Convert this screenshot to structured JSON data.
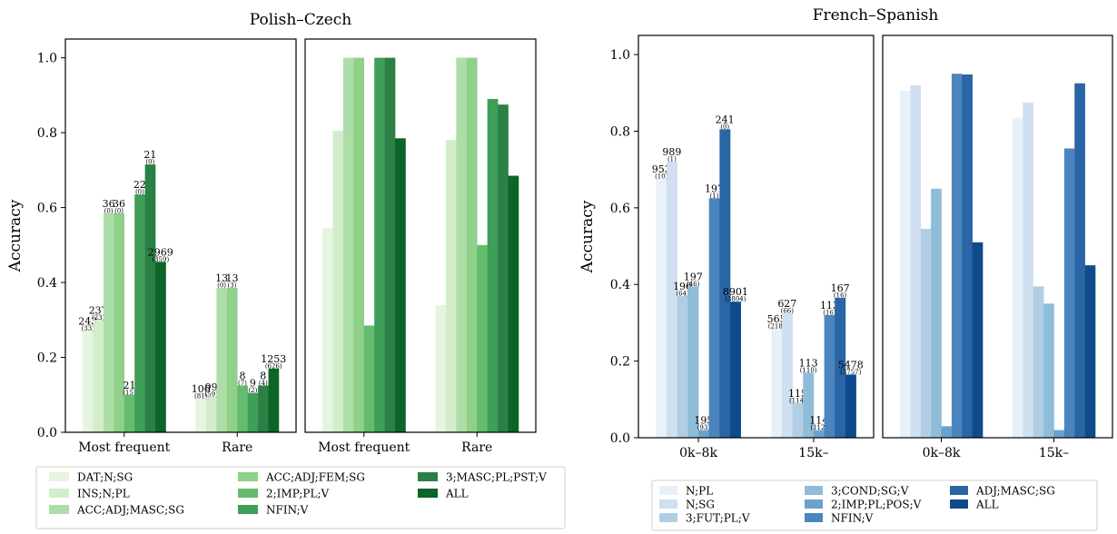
{
  "chart_data": [
    {
      "type": "bar",
      "title": "Polish–Czech",
      "ylabel": "Accuracy",
      "ylim": [
        0,
        1.0
      ],
      "yticks": [
        "0.0",
        "0.2",
        "0.4",
        "0.6",
        "0.8",
        "1.0"
      ],
      "categories": [
        "Most frequent",
        "Rare"
      ],
      "legend": [
        "DAT;N;SG",
        "INS;N;PL",
        "ACC;ADJ;MASC;SG",
        "ACC;ADJ;FEM;SG",
        "2;IMP;PL;V",
        "NFIN;V",
        "3;MASC;PL;PST;V",
        "ALL"
      ],
      "colors": [
        "#e5f5e0",
        "#d2edcc",
        "#aedea7",
        "#8fd08a",
        "#64bc6f",
        "#3f9e58",
        "#2a8045",
        "#0b6428"
      ],
      "panels": [
        {
          "values": [
            [
              0.27,
              0.3,
              0.585,
              0.585,
              0.1,
              0.635,
              0.715,
              0.455
            ],
            [
              0.09,
              0.095,
              0.385,
              0.385,
              0.125,
              0.105,
              0.125,
              0.17
            ]
          ],
          "labels": [
            [
              "243",
              "237",
              "36",
              "36",
              "21",
              "22",
              "21",
              "2969"
            ],
            [
              "106",
              "99",
              "13",
              "13",
              "8",
              "9",
              "8",
              "1253"
            ]
          ],
          "sublabels": [
            [
              "(33)",
              "(23)",
              "(0)",
              "(0)",
              "(15)",
              "(0)",
              "(0)",
              "(359)"
            ],
            [
              "(81)",
              "(59)",
              "(0)",
              "(3)",
              "(7)",
              "(2)",
              "(4)",
              "(626)"
            ]
          ]
        },
        {
          "values": [
            [
              0.545,
              0.805,
              1.0,
              1.0,
              0.285,
              1.0,
              1.0,
              0.785
            ],
            [
              0.34,
              0.78,
              1.0,
              1.0,
              0.5,
              0.89,
              0.875,
              0.685
            ]
          ]
        }
      ]
    },
    {
      "type": "bar",
      "title": "French–Spanish",
      "ylabel": "Accuracy",
      "ylim": [
        0,
        1.0
      ],
      "yticks": [
        "0.0",
        "0.2",
        "0.4",
        "0.6",
        "0.8",
        "1.0"
      ],
      "categories": [
        "0k–8k",
        "15k–"
      ],
      "legend": [
        "N;PL",
        "N;SG",
        "3;FUT;PL;V",
        "3;COND;SG;V",
        "2;IMP;PL;POS;V",
        "NFIN;V",
        "ADJ;MASC;SG",
        "ALL"
      ],
      "colors": [
        "#e8f0f9",
        "#d0e0f0",
        "#b0cfe4",
        "#8ebcd9",
        "#6aa2cc",
        "#4a86bd",
        "#2a65a5",
        "#0e4a8c"
      ],
      "panels": [
        {
          "values": [
            [
              0.675,
              0.72,
              0.37,
              0.395,
              0.02,
              0.625,
              0.805,
              0.355
            ],
            [
              0.285,
              0.325,
              0.09,
              0.17,
              0.02,
              0.32,
              0.365,
              0.165
            ]
          ],
          "labels": [
            [
              "953",
              "989",
              "196",
              "197",
              "195",
              "197",
              "241",
              "8901"
            ],
            [
              "565",
              "627",
              "115",
              "113",
              "114",
              "113",
              "167",
              "5478"
            ]
          ],
          "sublabels": [
            [
              "(10)",
              "(1)",
              "(64)",
              "(46)",
              "(93)",
              "(1)",
              "(0)",
              "(3804)"
            ],
            [
              "(218)",
              "(66)",
              "(114)",
              "(110)",
              "(112)",
              "(16)",
              "(16)",
              "(3757)"
            ]
          ]
        },
        {
          "values": [
            [
              0.905,
              0.92,
              0.545,
              0.65,
              0.03,
              0.95,
              0.948,
              0.51
            ],
            [
              0.835,
              0.875,
              0.395,
              0.35,
              0.02,
              0.755,
              0.925,
              0.45
            ]
          ]
        }
      ]
    }
  ]
}
